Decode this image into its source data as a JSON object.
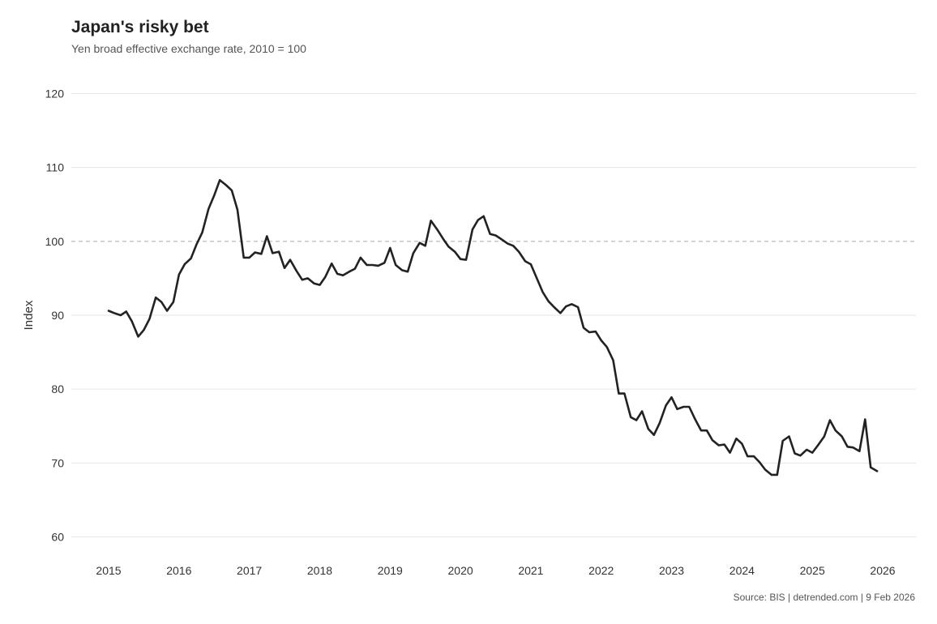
{
  "title": "Japan's risky bet",
  "subtitle": "Yen broad effective exchange rate, 2010 = 100",
  "caption": "Source: BIS | detrended.com | 9 Feb 2026",
  "chart_data": {
    "type": "line",
    "ylabel": "Index",
    "xlabel": "",
    "ylim": [
      60,
      120
    ],
    "yticks": [
      60,
      70,
      80,
      90,
      100,
      110,
      120
    ],
    "xlim": [
      2014.85,
      2026.45
    ],
    "xticks": [
      2015,
      2016,
      2017,
      2018,
      2019,
      2020,
      2021,
      2022,
      2023,
      2024,
      2025,
      2026
    ],
    "reference_line": {
      "y": 100,
      "style": "dashed"
    },
    "grid": true,
    "line_color": "#222222",
    "series": [
      {
        "name": "Yen broad effective exchange rate",
        "points": [
          [
            2015.0,
            90.6
          ],
          [
            2015.08,
            90.3
          ],
          [
            2015.17,
            90.0
          ],
          [
            2015.25,
            90.5
          ],
          [
            2015.33,
            89.2
          ],
          [
            2015.42,
            87.1
          ],
          [
            2015.5,
            88.0
          ],
          [
            2015.58,
            89.5
          ],
          [
            2015.67,
            92.4
          ],
          [
            2015.75,
            91.8
          ],
          [
            2015.83,
            90.6
          ],
          [
            2015.92,
            91.8
          ],
          [
            2016.0,
            95.5
          ],
          [
            2016.08,
            96.9
          ],
          [
            2016.17,
            97.7
          ],
          [
            2016.25,
            99.6
          ],
          [
            2016.33,
            101.2
          ],
          [
            2016.42,
            104.4
          ],
          [
            2016.5,
            106.2
          ],
          [
            2016.58,
            108.3
          ],
          [
            2016.67,
            107.6
          ],
          [
            2016.75,
            106.9
          ],
          [
            2016.83,
            104.3
          ],
          [
            2016.92,
            97.8
          ],
          [
            2017.0,
            97.8
          ],
          [
            2017.08,
            98.5
          ],
          [
            2017.17,
            98.3
          ],
          [
            2017.25,
            100.7
          ],
          [
            2017.33,
            98.4
          ],
          [
            2017.42,
            98.6
          ],
          [
            2017.5,
            96.4
          ],
          [
            2017.58,
            97.5
          ],
          [
            2017.67,
            96.0
          ],
          [
            2017.75,
            94.8
          ],
          [
            2017.83,
            95.0
          ],
          [
            2017.92,
            94.3
          ],
          [
            2018.0,
            94.1
          ],
          [
            2018.08,
            95.2
          ],
          [
            2018.17,
            97.0
          ],
          [
            2018.25,
            95.6
          ],
          [
            2018.33,
            95.4
          ],
          [
            2018.42,
            95.9
          ],
          [
            2018.5,
            96.3
          ],
          [
            2018.58,
            97.8
          ],
          [
            2018.67,
            96.8
          ],
          [
            2018.75,
            96.8
          ],
          [
            2018.83,
            96.7
          ],
          [
            2018.92,
            97.1
          ],
          [
            2019.0,
            99.1
          ],
          [
            2019.08,
            96.8
          ],
          [
            2019.17,
            96.1
          ],
          [
            2019.25,
            95.9
          ],
          [
            2019.33,
            98.4
          ],
          [
            2019.42,
            99.8
          ],
          [
            2019.5,
            99.4
          ],
          [
            2019.58,
            102.8
          ],
          [
            2019.67,
            101.6
          ],
          [
            2019.75,
            100.4
          ],
          [
            2019.83,
            99.3
          ],
          [
            2019.92,
            98.6
          ],
          [
            2020.0,
            97.6
          ],
          [
            2020.08,
            97.5
          ],
          [
            2020.17,
            101.6
          ],
          [
            2020.25,
            102.9
          ],
          [
            2020.33,
            103.4
          ],
          [
            2020.42,
            101.0
          ],
          [
            2020.5,
            100.8
          ],
          [
            2020.58,
            100.3
          ],
          [
            2020.67,
            99.7
          ],
          [
            2020.75,
            99.4
          ],
          [
            2020.83,
            98.6
          ],
          [
            2020.92,
            97.3
          ],
          [
            2021.0,
            96.9
          ],
          [
            2021.08,
            95.1
          ],
          [
            2021.17,
            93.1
          ],
          [
            2021.25,
            91.9
          ],
          [
            2021.33,
            91.1
          ],
          [
            2021.42,
            90.3
          ],
          [
            2021.5,
            91.2
          ],
          [
            2021.58,
            91.5
          ],
          [
            2021.67,
            91.1
          ],
          [
            2021.75,
            88.3
          ],
          [
            2021.83,
            87.7
          ],
          [
            2021.92,
            87.8
          ],
          [
            2022.0,
            86.6
          ],
          [
            2022.08,
            85.7
          ],
          [
            2022.17,
            83.9
          ],
          [
            2022.25,
            79.4
          ],
          [
            2022.33,
            79.4
          ],
          [
            2022.42,
            76.2
          ],
          [
            2022.5,
            75.8
          ],
          [
            2022.58,
            77.0
          ],
          [
            2022.67,
            74.6
          ],
          [
            2022.75,
            73.8
          ],
          [
            2022.83,
            75.4
          ],
          [
            2022.92,
            77.8
          ],
          [
            2023.0,
            78.9
          ],
          [
            2023.08,
            77.3
          ],
          [
            2023.17,
            77.6
          ],
          [
            2023.25,
            77.6
          ],
          [
            2023.33,
            76.0
          ],
          [
            2023.42,
            74.4
          ],
          [
            2023.5,
            74.4
          ],
          [
            2023.58,
            73.1
          ],
          [
            2023.67,
            72.4
          ],
          [
            2023.75,
            72.5
          ],
          [
            2023.83,
            71.4
          ],
          [
            2023.92,
            73.3
          ],
          [
            2024.0,
            72.6
          ],
          [
            2024.08,
            70.9
          ],
          [
            2024.17,
            70.9
          ],
          [
            2024.25,
            70.1
          ],
          [
            2024.33,
            69.1
          ],
          [
            2024.42,
            68.4
          ],
          [
            2024.5,
            68.4
          ],
          [
            2024.58,
            73.0
          ],
          [
            2024.67,
            73.6
          ],
          [
            2024.75,
            71.3
          ],
          [
            2024.83,
            71.0
          ],
          [
            2024.92,
            71.8
          ],
          [
            2025.0,
            71.4
          ],
          [
            2025.08,
            72.4
          ],
          [
            2025.17,
            73.6
          ],
          [
            2025.25,
            75.8
          ],
          [
            2025.33,
            74.4
          ],
          [
            2025.42,
            73.6
          ],
          [
            2025.5,
            72.2
          ],
          [
            2025.58,
            72.1
          ],
          [
            2025.67,
            71.6
          ],
          [
            2025.75,
            75.9
          ],
          [
            2025.83,
            69.4
          ],
          [
            2025.92,
            68.9
          ]
        ]
      }
    ]
  }
}
